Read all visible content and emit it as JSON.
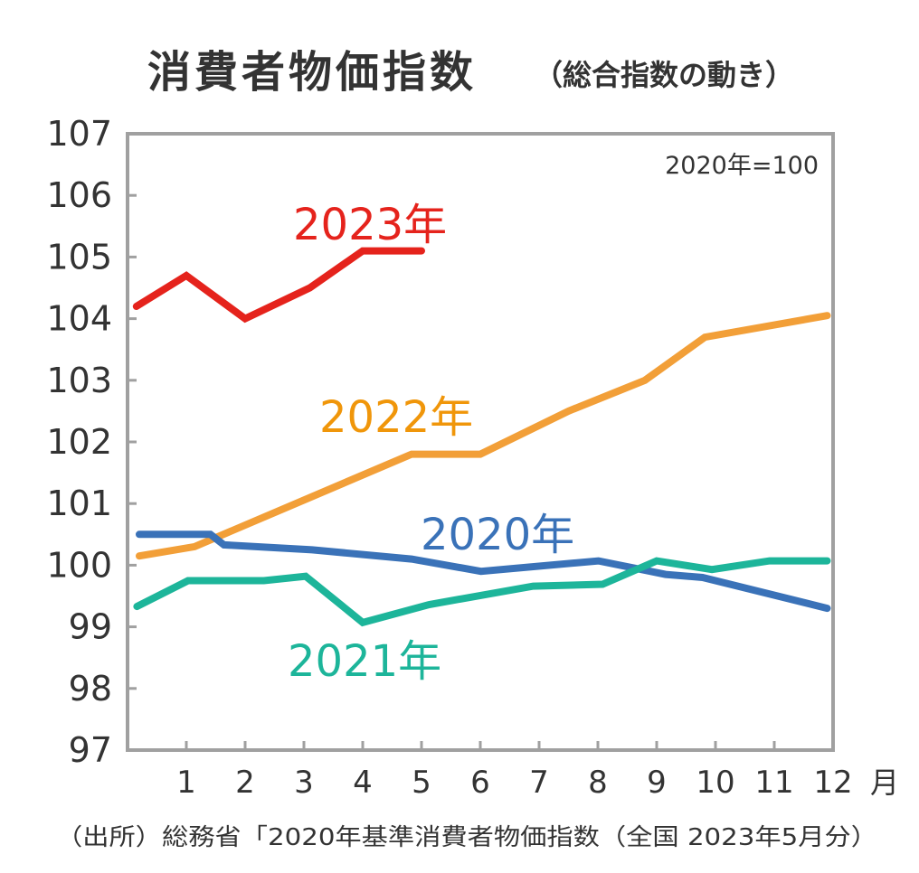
{
  "chart_data": {
    "type": "line",
    "title": "消費者物価指数",
    "subtitle": "（総合指数の動き）",
    "annotation": "2020年=100",
    "xlabel": "",
    "ylabel": "",
    "xlim": [
      0,
      12
    ],
    "ylim": [
      97,
      107
    ],
    "yticks": [
      "97",
      "98",
      "99",
      "100",
      "101",
      "102",
      "103",
      "104",
      "105",
      "106",
      "107"
    ],
    "xticks": [
      "1",
      "2",
      "3",
      "4",
      "5",
      "6",
      "7",
      "8",
      "9",
      "10",
      "11",
      "12"
    ],
    "x_unit": "月",
    "grid": false,
    "source": "（出所）総務省「2020年基準消費者物価指数（全国 2023年5月分）",
    "series": [
      {
        "name": "2023年",
        "color": "#e5231c",
        "label_color": "#e5231c",
        "x": [
          0.15,
          1.0,
          2.0,
          3.1,
          4.0,
          5.0
        ],
        "values": [
          104.2,
          104.7,
          104.0,
          104.5,
          105.1,
          105.1
        ]
      },
      {
        "name": "2022年",
        "color": "#f29f38",
        "label_color": "#f0960a",
        "x": [
          0.2,
          1.14,
          4.83,
          6.0,
          7.5,
          8.8,
          9.82,
          11.9
        ],
        "values": [
          100.15,
          100.3,
          101.8,
          101.8,
          102.5,
          103.0,
          103.7,
          104.05
        ]
      },
      {
        "name": "2020年",
        "color": "#3a72b8",
        "label_color": "#3a72b8",
        "x": [
          0.2,
          1.41,
          1.64,
          3.14,
          4.83,
          6.01,
          8.01,
          9.15,
          9.78,
          11.9
        ],
        "values": [
          100.5,
          100.5,
          100.33,
          100.25,
          100.1,
          99.9,
          100.07,
          99.85,
          99.8,
          99.3
        ]
      },
      {
        "name": "2021年",
        "color": "#1db59a",
        "label_color": "#1db59a",
        "x": [
          0.16,
          1.03,
          2.32,
          3.03,
          4.0,
          5.13,
          6.9,
          8.08,
          9.0,
          9.94,
          10.92,
          11.9
        ],
        "values": [
          99.33,
          99.75,
          99.75,
          99.82,
          99.07,
          99.36,
          99.66,
          99.69,
          100.07,
          99.93,
          100.07,
          100.07
        ]
      }
    ]
  }
}
